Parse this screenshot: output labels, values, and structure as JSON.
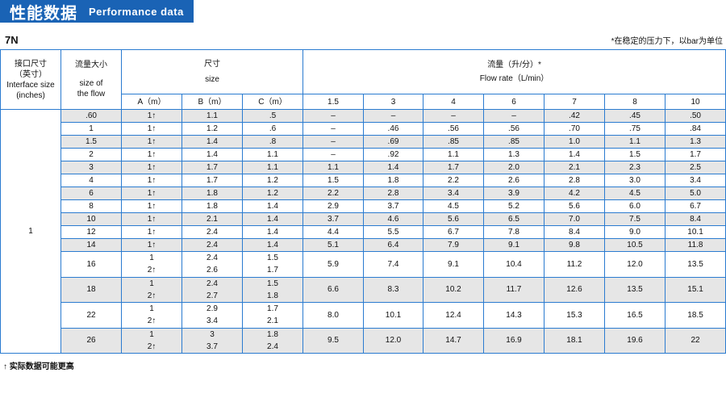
{
  "header": {
    "title_zh": "性能数据",
    "title_en": "Performance data",
    "color": "#1a63b5"
  },
  "model": "7N",
  "note": "*在稳定的压力下，以bar为单位",
  "footnote": "↑ 实际数据可能更高",
  "table": {
    "col_interface": {
      "zh1": "接口尺寸",
      "zh2": "（英寸）",
      "en1": "Interface size",
      "en2": "(inches)"
    },
    "col_flow": {
      "zh": "流量大小",
      "en1": "size of",
      "en2": "the flow"
    },
    "col_size": {
      "zh": "尺寸",
      "en": "size"
    },
    "col_rate": {
      "zh": "流量（升/分）*",
      "en": "Flow rate（L/min）"
    },
    "size_cols": [
      "A（m）",
      "B（m）",
      "C（m）"
    ],
    "pressures": [
      "1.5",
      "3",
      "4",
      "6",
      "7",
      "8",
      "10"
    ],
    "interface_value": "1",
    "rows": [
      {
        "flow": ".60",
        "A": [
          "1↑"
        ],
        "B": [
          "1.1"
        ],
        "C": [
          ".5"
        ],
        "rates": [
          "–",
          "–",
          "–",
          "–",
          ".42",
          ".45",
          ".50"
        ]
      },
      {
        "flow": "1",
        "A": [
          "1↑"
        ],
        "B": [
          "1.2"
        ],
        "C": [
          ".6"
        ],
        "rates": [
          "–",
          ".46",
          ".56",
          ".56",
          ".70",
          ".75",
          ".84"
        ]
      },
      {
        "flow": "1.5",
        "A": [
          "1↑"
        ],
        "B": [
          "1.4"
        ],
        "C": [
          ".8"
        ],
        "rates": [
          "–",
          ".69",
          ".85",
          ".85",
          "1.0",
          "1.1",
          "1.3"
        ]
      },
      {
        "flow": "2",
        "A": [
          "1↑"
        ],
        "B": [
          "1.4"
        ],
        "C": [
          "1.1"
        ],
        "rates": [
          "–",
          ".92",
          "1.1",
          "1.3",
          "1.4",
          "1.5",
          "1.7"
        ]
      },
      {
        "flow": "3",
        "A": [
          "1↑"
        ],
        "B": [
          "1.7"
        ],
        "C": [
          "1.1"
        ],
        "rates": [
          "1.1",
          "1.4",
          "1.7",
          "2.0",
          "2.1",
          "2.3",
          "2.5"
        ]
      },
      {
        "flow": "4",
        "A": [
          "1↑"
        ],
        "B": [
          "1.7"
        ],
        "C": [
          "1.2"
        ],
        "rates": [
          "1.5",
          "1.8",
          "2.2",
          "2.6",
          "2.8",
          "3.0",
          "3.4"
        ]
      },
      {
        "flow": "6",
        "A": [
          "1↑"
        ],
        "B": [
          "1.8"
        ],
        "C": [
          "1.2"
        ],
        "rates": [
          "2.2",
          "2.8",
          "3.4",
          "3.9",
          "4.2",
          "4.5",
          "5.0"
        ]
      },
      {
        "flow": "8",
        "A": [
          "1↑"
        ],
        "B": [
          "1.8"
        ],
        "C": [
          "1.4"
        ],
        "rates": [
          "2.9",
          "3.7",
          "4.5",
          "5.2",
          "5.6",
          "6.0",
          "6.7"
        ]
      },
      {
        "flow": "10",
        "A": [
          "1↑"
        ],
        "B": [
          "2.1"
        ],
        "C": [
          "1.4"
        ],
        "rates": [
          "3.7",
          "4.6",
          "5.6",
          "6.5",
          "7.0",
          "7.5",
          "8.4"
        ]
      },
      {
        "flow": "12",
        "A": [
          "1↑"
        ],
        "B": [
          "2.4"
        ],
        "C": [
          "1.4"
        ],
        "rates": [
          "4.4",
          "5.5",
          "6.7",
          "7.8",
          "8.4",
          "9.0",
          "10.1"
        ]
      },
      {
        "flow": "14",
        "A": [
          "1↑"
        ],
        "B": [
          "2.4"
        ],
        "C": [
          "1.4"
        ],
        "rates": [
          "5.1",
          "6.4",
          "7.9",
          "9.1",
          "9.8",
          "10.5",
          "11.8"
        ]
      },
      {
        "flow": "16",
        "A": [
          "1",
          "2↑"
        ],
        "B": [
          "2.4",
          "2.6"
        ],
        "C": [
          "1.5",
          "1.7"
        ],
        "rates": [
          "5.9",
          "7.4",
          "9.1",
          "10.4",
          "11.2",
          "12.0",
          "13.5"
        ]
      },
      {
        "flow": "18",
        "A": [
          "1",
          "2↑"
        ],
        "B": [
          "2.4",
          "2.7"
        ],
        "C": [
          "1.5",
          "1.8"
        ],
        "rates": [
          "6.6",
          "8.3",
          "10.2",
          "11.7",
          "12.6",
          "13.5",
          "15.1"
        ]
      },
      {
        "flow": "22",
        "A": [
          "1",
          "2↑"
        ],
        "B": [
          "2.9",
          "3.4"
        ],
        "C": [
          "1.7",
          "2.1"
        ],
        "rates": [
          "8.0",
          "10.1",
          "12.4",
          "14.3",
          "15.3",
          "16.5",
          "18.5"
        ]
      },
      {
        "flow": "26",
        "A": [
          "1",
          "2↑"
        ],
        "B": [
          "3",
          "3.7"
        ],
        "C": [
          "1.8",
          "2.4"
        ],
        "rates": [
          "9.5",
          "12.0",
          "14.7",
          "16.9",
          "18.1",
          "19.6",
          "22"
        ]
      }
    ]
  }
}
